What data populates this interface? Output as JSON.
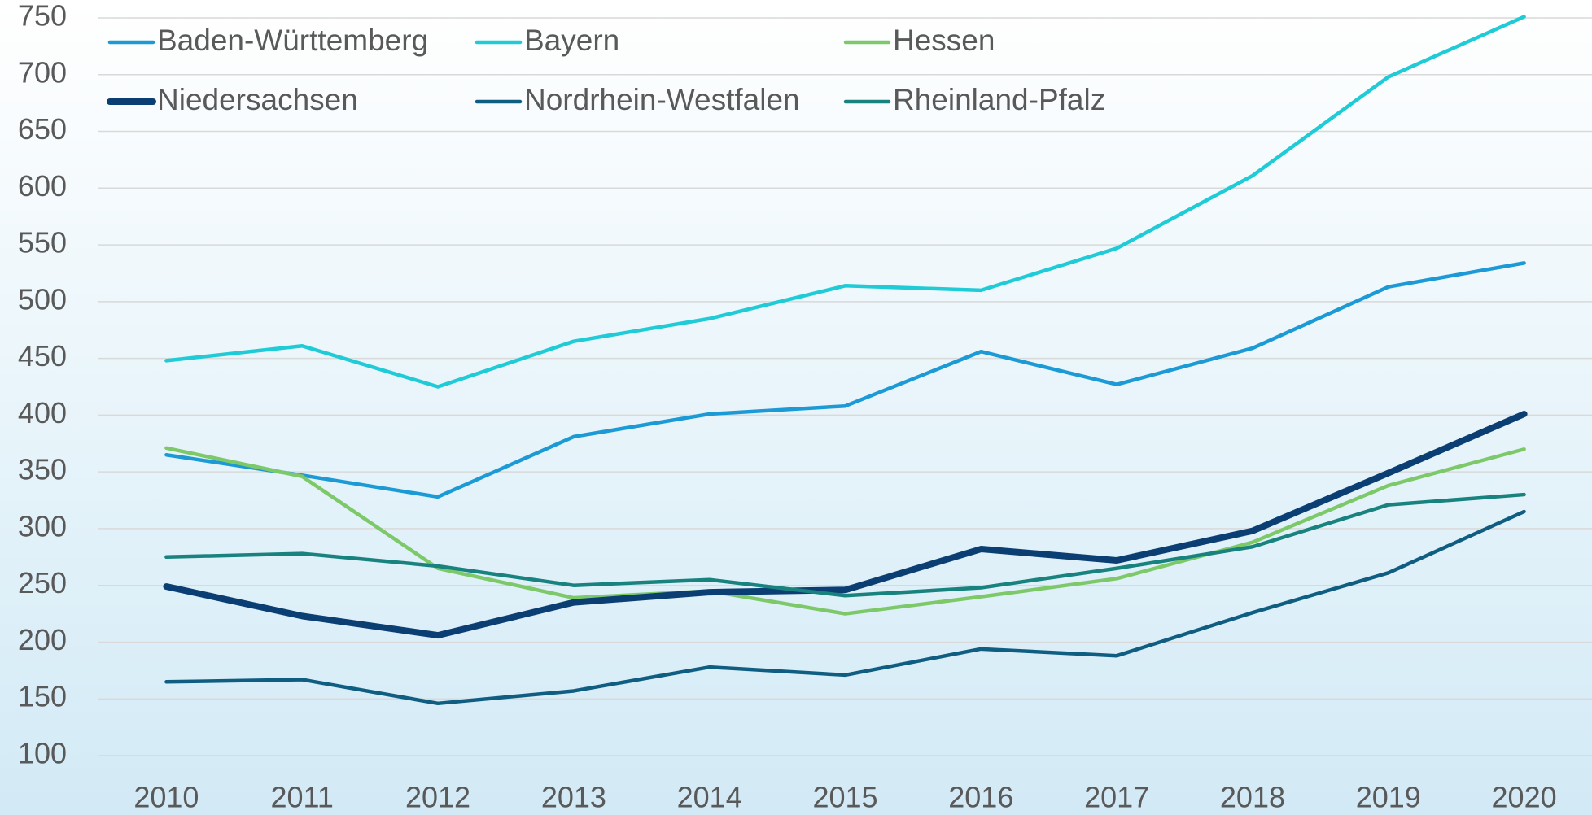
{
  "chart_data": {
    "type": "line",
    "categories": [
      "2010",
      "2011",
      "2012",
      "2013",
      "2014",
      "2015",
      "2016",
      "2017",
      "2018",
      "2019",
      "2020"
    ],
    "series": [
      {
        "name": "Baden-Württemberg",
        "color": "#1b9ad6",
        "line_width": 4.5,
        "values": [
          365,
          347,
          328,
          381,
          401,
          408,
          456,
          427,
          459,
          513,
          534
        ]
      },
      {
        "name": "Bayern",
        "color": "#1fcbd6",
        "line_width": 4.5,
        "values": [
          448,
          461,
          425,
          465,
          485,
          514,
          510,
          547,
          611,
          698,
          751
        ]
      },
      {
        "name": "Hessen",
        "color": "#7dc96a",
        "line_width": 4.5,
        "values": [
          371,
          346,
          265,
          239,
          245,
          225,
          240,
          256,
          288,
          338,
          370
        ]
      },
      {
        "name": "Niedersachsen",
        "color": "#0b3f73",
        "line_width": 8,
        "values": [
          249,
          223,
          206,
          235,
          244,
          246,
          282,
          272,
          298,
          349,
          401
        ]
      },
      {
        "name": "Nordrhein-Westfalen",
        "color": "#0f5e82",
        "line_width": 4.5,
        "values": [
          165,
          167,
          146,
          157,
          178,
          171,
          194,
          188,
          226,
          261,
          315
        ]
      },
      {
        "name": "Rheinland-Pfalz",
        "color": "#17827e",
        "line_width": 4.5,
        "values": [
          275,
          278,
          267,
          250,
          255,
          241,
          248,
          265,
          284,
          321,
          330
        ]
      }
    ],
    "ylim": [
      100,
      750
    ],
    "yticks": [
      100,
      150,
      200,
      250,
      300,
      350,
      400,
      450,
      500,
      550,
      600,
      650,
      700,
      750
    ],
    "grid": true,
    "legend": "top-left"
  }
}
